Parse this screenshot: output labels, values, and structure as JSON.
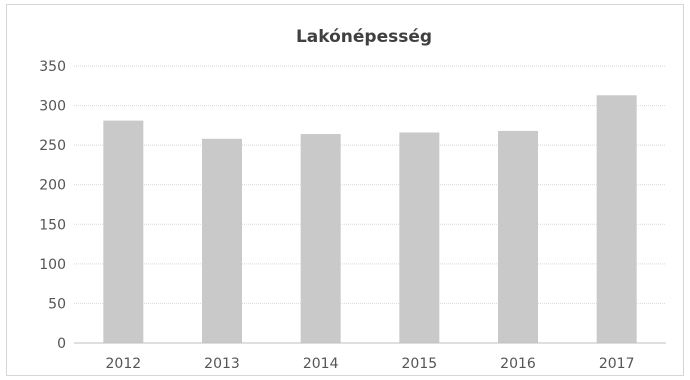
{
  "chart_data": {
    "type": "bar",
    "title": "Lakónépesség",
    "xlabel": "",
    "ylabel": "",
    "categories": [
      "2012",
      "2013",
      "2014",
      "2015",
      "2016",
      "2017"
    ],
    "values": [
      281,
      258,
      264,
      266,
      268,
      313
    ],
    "ylim": [
      0,
      350
    ],
    "yticks": [
      "0",
      "50",
      "100",
      "150",
      "200",
      "250",
      "300",
      "350"
    ],
    "grid": true,
    "legend": "none",
    "bar_color": "#c9c9c9"
  }
}
